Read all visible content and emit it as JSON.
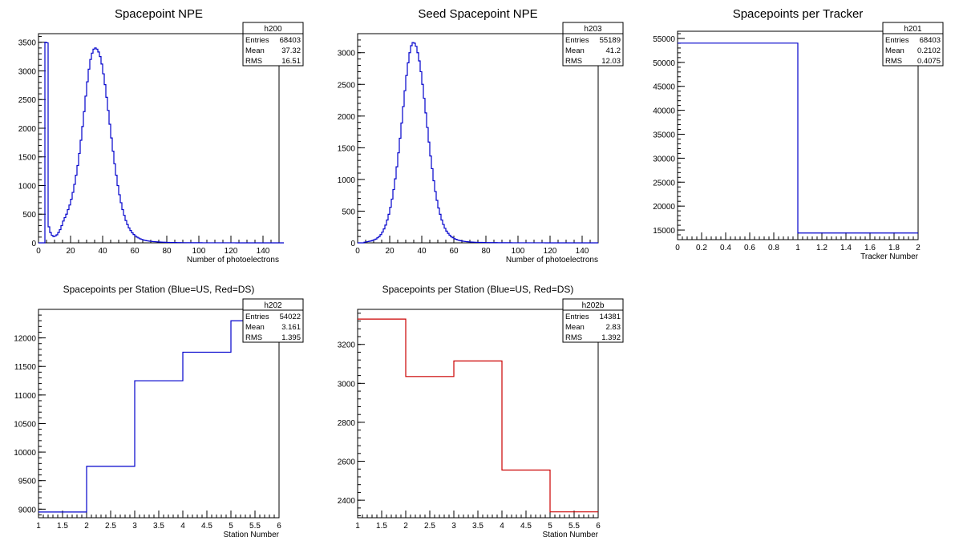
{
  "chart_data": [
    {
      "id": "h200",
      "type": "histogram",
      "title": "Spacepoint NPE",
      "xlabel": "Number of photoelectrons",
      "ylabel": "",
      "xlim": [
        0,
        150
      ],
      "ylim": [
        0,
        3650
      ],
      "xticks": [
        0,
        20,
        40,
        60,
        80,
        100,
        120,
        140
      ],
      "yticks": [
        0,
        500,
        1000,
        1500,
        2000,
        2500,
        3000,
        3500
      ],
      "color": "#0000cc",
      "bin_start": 0,
      "bin_width": 1,
      "values": [
        0,
        0,
        0,
        0,
        3500,
        3490,
        280,
        180,
        130,
        110,
        120,
        140,
        180,
        230,
        300,
        380,
        440,
        500,
        580,
        660,
        760,
        880,
        1020,
        1180,
        1350,
        1560,
        1790,
        2030,
        2290,
        2560,
        2810,
        3030,
        3200,
        3310,
        3380,
        3400,
        3380,
        3330,
        3250,
        3120,
        2950,
        2760,
        2540,
        2310,
        2070,
        1830,
        1600,
        1380,
        1180,
        1000,
        840,
        700,
        580,
        480,
        390,
        320,
        260,
        215,
        175,
        145,
        120,
        100,
        85,
        70,
        60,
        50,
        43,
        37,
        32,
        28,
        25,
        22,
        20,
        18,
        16,
        14,
        12,
        11,
        10,
        9,
        8,
        7,
        6,
        6,
        5,
        5,
        4,
        4,
        4,
        3,
        3,
        3,
        3,
        2,
        2,
        2,
        2,
        2,
        2,
        2,
        2,
        2,
        1,
        1,
        1,
        1,
        1,
        1,
        1,
        1,
        1,
        1,
        1,
        1,
        1,
        1,
        1,
        1,
        1,
        1,
        1,
        1,
        1,
        0,
        0,
        0,
        0,
        0,
        0,
        0,
        0,
        0,
        0,
        0,
        0,
        0,
        0,
        0,
        0,
        0,
        0,
        0,
        0,
        0,
        0,
        0,
        0,
        0,
        0,
        0,
        0,
        0,
        0
      ],
      "stats": {
        "name": "h200",
        "rows": [
          {
            "label": "Entries",
            "value": "68403"
          },
          {
            "label": "Mean",
            "value": "37.32"
          },
          {
            "label": "RMS",
            "value": "16.51"
          }
        ]
      }
    },
    {
      "id": "h203",
      "type": "histogram",
      "title": "Seed Spacepoint NPE",
      "xlabel": "Number of photoelectrons",
      "ylabel": "",
      "xlim": [
        0,
        150
      ],
      "ylim": [
        0,
        3300
      ],
      "xticks": [
        0,
        20,
        40,
        60,
        80,
        100,
        120,
        140
      ],
      "yticks": [
        0,
        500,
        1000,
        1500,
        2000,
        2500,
        3000
      ],
      "color": "#0000cc",
      "bin_start": 0,
      "bin_width": 1,
      "values": [
        0,
        0,
        0,
        0,
        10,
        15,
        20,
        25,
        30,
        40,
        50,
        60,
        80,
        100,
        130,
        170,
        220,
        280,
        360,
        450,
        560,
        690,
        840,
        1010,
        1200,
        1420,
        1650,
        1890,
        2150,
        2400,
        2640,
        2840,
        3000,
        3110,
        3160,
        3150,
        3100,
        3000,
        2870,
        2700,
        2500,
        2280,
        2050,
        1820,
        1590,
        1370,
        1170,
        980,
        810,
        670,
        550,
        450,
        360,
        290,
        230,
        185,
        150,
        120,
        95,
        80,
        65,
        55,
        45,
        38,
        32,
        27,
        23,
        20,
        17,
        15,
        13,
        11,
        10,
        9,
        8,
        7,
        6,
        6,
        5,
        5,
        4,
        4,
        4,
        3,
        3,
        3,
        3,
        2,
        2,
        2,
        2,
        2,
        2,
        2,
        2,
        2,
        1,
        1,
        1,
        1,
        1,
        1,
        1,
        1,
        1,
        1,
        1,
        1,
        1,
        1,
        1,
        1,
        1,
        1,
        1,
        1,
        1,
        0,
        0,
        0,
        0,
        0,
        0,
        0,
        0,
        0,
        0,
        0,
        0,
        0,
        0,
        0,
        0,
        0,
        0,
        0,
        0,
        0,
        0,
        0,
        0,
        0,
        0,
        0,
        0,
        0,
        0,
        0,
        0,
        0
      ],
      "stats": {
        "name": "h203",
        "rows": [
          {
            "label": "Entries",
            "value": "55189"
          },
          {
            "label": "Mean",
            "value": "41.2"
          },
          {
            "label": "RMS",
            "value": "12.03"
          }
        ]
      }
    },
    {
      "id": "h201",
      "type": "histogram",
      "title": "Spacepoints per Tracker",
      "xlabel": "Tracker Number",
      "ylabel": "",
      "xlim": [
        0,
        2
      ],
      "ylim": [
        13000,
        56500
      ],
      "xticks": [
        0,
        0.2,
        0.4,
        0.6,
        0.8,
        1,
        1.2,
        1.4,
        1.6,
        1.8,
        2
      ],
      "xtick_labels": [
        "0",
        "0.2",
        "0.4",
        "0.6",
        "0.8",
        "1",
        "1.2",
        "1.4",
        "1.6",
        "1.8",
        "2"
      ],
      "yticks": [
        15000,
        20000,
        25000,
        30000,
        35000,
        40000,
        45000,
        50000,
        55000
      ],
      "color": "#0000cc",
      "bin_start": 0,
      "bin_width": 1,
      "values": [
        54022,
        14381
      ],
      "stats": {
        "name": "h201",
        "rows": [
          {
            "label": "Entries",
            "value": "68403"
          },
          {
            "label": "Mean",
            "value": "0.2102"
          },
          {
            "label": "RMS",
            "value": "0.4075"
          }
        ]
      }
    },
    {
      "id": "h202",
      "type": "histogram",
      "title": "Spacepoints per Station (Blue=US, Red=DS)",
      "xlabel": "Station Number",
      "ylabel": "",
      "xlim": [
        1,
        6
      ],
      "ylim": [
        8850,
        12500
      ],
      "xticks": [
        1,
        1.5,
        2,
        2.5,
        3,
        3.5,
        4,
        4.5,
        5,
        5.5,
        6
      ],
      "xtick_labels": [
        "1",
        "1.5",
        "2",
        "2.5",
        "3",
        "3.5",
        "4",
        "4.5",
        "5",
        "5.5",
        "6"
      ],
      "yticks": [
        9000,
        9500,
        10000,
        10500,
        11000,
        11500,
        12000
      ],
      "color": "#0000cc",
      "bin_start": 1,
      "bin_width": 1,
      "values": [
        8950,
        9750,
        11250,
        11750,
        12300
      ],
      "stats": {
        "name": "h202",
        "rows": [
          {
            "label": "Entries",
            "value": "54022"
          },
          {
            "label": "Mean",
            "value": "3.161"
          },
          {
            "label": "RMS",
            "value": "1.395"
          }
        ]
      }
    },
    {
      "id": "h202b",
      "type": "histogram",
      "title": "Spacepoints per Station (Blue=US, Red=DS)",
      "xlabel": "Station Number",
      "ylabel": "",
      "xlim": [
        1,
        6
      ],
      "ylim": [
        2310,
        3380
      ],
      "xticks": [
        1,
        1.5,
        2,
        2.5,
        3,
        3.5,
        4,
        4.5,
        5,
        5.5,
        6
      ],
      "xtick_labels": [
        "1",
        "1.5",
        "2",
        "2.5",
        "3",
        "3.5",
        "4",
        "4.5",
        "5",
        "5.5",
        "6"
      ],
      "yticks": [
        2400,
        2600,
        2800,
        3000,
        3200
      ],
      "color": "#cc0000",
      "bin_start": 1,
      "bin_width": 1,
      "values": [
        3330,
        3035,
        3115,
        2555,
        2340
      ],
      "stats": {
        "name": "h202b",
        "rows": [
          {
            "label": "Entries",
            "value": "14381"
          },
          {
            "label": "Mean",
            "value": "2.83"
          },
          {
            "label": "RMS",
            "value": "1.392"
          }
        ]
      }
    }
  ]
}
